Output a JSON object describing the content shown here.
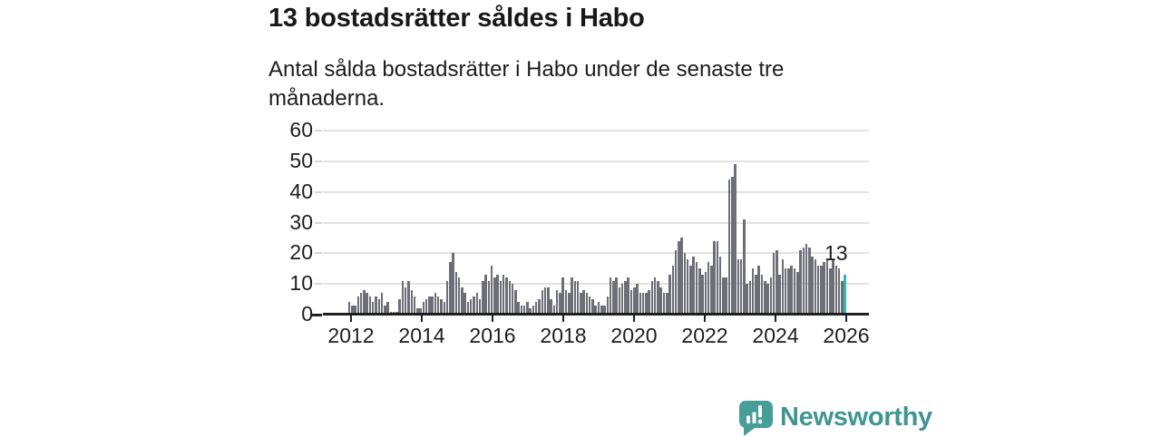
{
  "header": {
    "title": "13 bostadsrätter såldes i Habo",
    "subtitle": "Antal sålda bostadsrätter i Habo under de senaste tre månaderna."
  },
  "chart_data": {
    "type": "bar",
    "title": "13 bostadsrätter såldes i Habo",
    "subtitle": "Antal sålda bostadsrätter i Habo under de senaste tre månaderna.",
    "unit": "sold condominiums per rolling three months, monthly bars",
    "x_tick_labels": [
      "2012",
      "2014",
      "2016",
      "2018",
      "2020",
      "2022",
      "2024",
      "2026"
    ],
    "y_tick_labels": [
      0,
      10,
      20,
      30,
      40,
      50,
      60
    ],
    "ylim": [
      0,
      60
    ],
    "grid": true,
    "values": [
      4,
      3,
      3,
      6,
      7,
      8,
      7,
      6,
      4,
      6,
      5,
      7,
      3,
      4,
      1,
      1,
      1,
      5,
      11,
      9,
      11,
      8,
      6,
      2,
      2,
      4,
      5,
      6,
      6,
      7,
      6,
      5,
      4,
      11,
      17,
      20,
      14,
      12,
      9,
      7,
      4,
      5,
      6,
      7,
      5,
      11,
      13,
      11,
      16,
      12,
      13,
      11,
      13,
      12,
      11,
      10,
      8,
      4,
      3,
      3,
      4,
      2,
      3,
      4,
      5,
      8,
      9,
      9,
      5,
      3,
      8,
      7,
      12,
      8,
      7,
      12,
      11,
      11,
      7,
      8,
      7,
      6,
      5,
      3,
      4,
      3,
      3,
      6,
      12,
      11,
      12,
      9,
      10,
      11,
      12,
      8,
      9,
      10,
      7,
      7,
      7,
      8,
      11,
      12,
      11,
      9,
      7,
      7,
      13,
      16,
      21,
      24,
      25,
      20,
      18,
      16,
      19,
      17,
      15,
      13,
      14,
      17,
      16,
      24,
      24,
      19,
      12,
      12,
      44,
      45,
      49,
      18,
      18,
      31,
      10,
      11,
      15,
      13,
      16,
      13,
      11,
      10,
      12,
      20,
      21,
      13,
      18,
      15,
      15,
      16,
      15,
      14,
      21,
      22,
      23,
      22,
      19,
      18,
      16,
      16,
      17,
      18,
      15,
      18,
      16,
      15,
      11,
      13
    ],
    "last_value_label": "13",
    "highlight_last_bar": true,
    "colors": {
      "bar": "#6e6e77",
      "highlight": "#2bbcb1",
      "gridline": "#e2e2e2",
      "axis": "#1f1f1f",
      "text": "#1d1d1d"
    }
  },
  "footer": {
    "brand": "Newsworthy",
    "brand_color": "#3e9690",
    "logo_icon": "speech-bubble-bar-chart-exclamation"
  }
}
